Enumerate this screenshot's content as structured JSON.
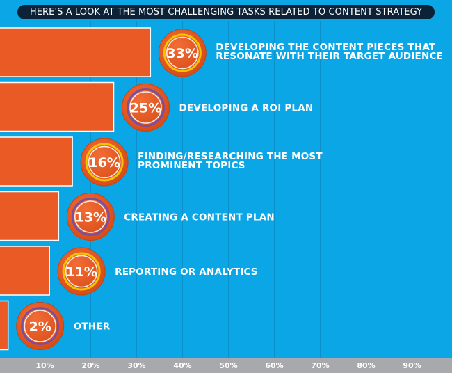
{
  "header": {
    "title": "HERE'S A LOOK AT THE MOST CHALLENGING TASKS RELATED TO CONTENT STRATEGY"
  },
  "colors": {
    "background": "#0aa6e6",
    "bar": "#e95a24",
    "bar_outline": "#ffffff",
    "header_bg": "#0b2237",
    "axis_band": "#a7a9ac",
    "ring_yellow": "#f2c500",
    "ring_purple": "#7b4fa0"
  },
  "chart_data": {
    "type": "bar",
    "orientation": "horizontal",
    "categories": [
      [
        "DEVELOPING THE CONTENT PIECES THAT",
        "RESONATE WITH THEIR TARGET AUDIENCE"
      ],
      [
        "DEVELOPING A ROI PLAN"
      ],
      [
        "FINDING/RESEARCHING THE MOST",
        "PROMINENT TOPICS"
      ],
      [
        "CREATING A CONTENT PLAN"
      ],
      [
        "REPORTING OR ANALYTICS"
      ],
      [
        "OTHER"
      ]
    ],
    "values": [
      33,
      25,
      16,
      13,
      11,
      2
    ],
    "value_labels": [
      "33%",
      "25%",
      "16%",
      "13%",
      "11%",
      "2%"
    ],
    "ring_colors": [
      "yellow",
      "purple",
      "yellow",
      "purple",
      "yellow",
      "purple"
    ],
    "x_ticks": [
      "10%",
      "20%",
      "30%",
      "40%",
      "50%",
      "60%",
      "70%",
      "80%",
      "90%"
    ],
    "xlim": [
      0,
      100
    ],
    "grid": true,
    "legend": "none"
  }
}
